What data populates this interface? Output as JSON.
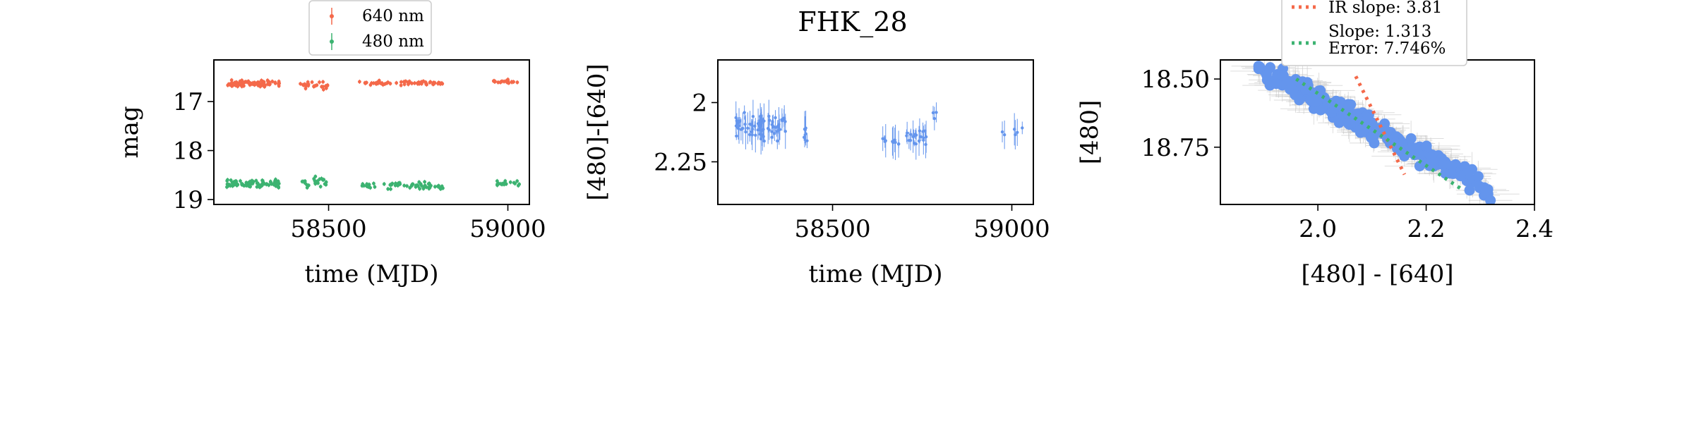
{
  "figure": {
    "title": "FHK_28"
  },
  "colors": {
    "red": "#f4694a",
    "green": "#3cb371",
    "blue": "#6495ed",
    "errgray": "#c8c8c8"
  },
  "chart_data": [
    {
      "type": "scatter",
      "xlabel": "time (MJD)",
      "ylabel": "mag",
      "xlim": [
        58180,
        59060
      ],
      "ylim": [
        19.1,
        16.15
      ],
      "yscale": "inverted",
      "xticks": [
        58500,
        59000
      ],
      "yticks": [
        17,
        18,
        19
      ],
      "legend": {
        "position": "top-center",
        "entries": [
          "640 nm",
          "480 nm"
        ]
      },
      "series": [
        {
          "name": "640 nm",
          "color": "#f4694a",
          "segments": [
            {
              "x_range": [
                58215,
                58365
              ],
              "y_mean": 16.63,
              "y_spread": 0.09,
              "n": 90
            },
            {
              "x_range": [
                58420,
                58500
              ],
              "y_mean": 16.68,
              "y_spread": 0.12,
              "n": 24
            },
            {
              "x_range": [
                58585,
                58820
              ],
              "y_mean": 16.62,
              "y_spread": 0.06,
              "n": 60
            },
            {
              "x_range": [
                58960,
                59035
              ],
              "y_mean": 16.6,
              "y_spread": 0.06,
              "n": 22
            }
          ]
        },
        {
          "name": "480 nm",
          "color": "#3cb371",
          "segments": [
            {
              "x_range": [
                58215,
                58365
              ],
              "y_mean": 18.68,
              "y_spread": 0.12,
              "n": 90
            },
            {
              "x_range": [
                58420,
                58500
              ],
              "y_mean": 18.65,
              "y_spread": 0.14,
              "n": 22
            },
            {
              "x_range": [
                58585,
                58820
              ],
              "y_mean": 18.72,
              "y_spread": 0.1,
              "n": 60
            },
            {
              "x_range": [
                58960,
                59035
              ],
              "y_mean": 18.68,
              "y_spread": 0.08,
              "n": 20
            }
          ]
        }
      ]
    },
    {
      "type": "scatter",
      "xlabel": "time (MJD)",
      "ylabel": "[480]-[640]",
      "xlim": [
        58180,
        59060
      ],
      "ylim": [
        2.43,
        1.82
      ],
      "yscale": "inverted",
      "xticks": [
        58500,
        59000
      ],
      "yticks": [
        2.0,
        2.25
      ],
      "series": [
        {
          "name": "",
          "color": "#6495ed",
          "segments": [
            {
              "x_range": [
                58230,
                58370
              ],
              "y_mean": 2.1,
              "y_spread": 0.08,
              "n": 70
            },
            {
              "x_range": [
                58420,
                58440
              ],
              "y_mean": 2.12,
              "y_spread": 0.06,
              "n": 6
            },
            {
              "x_range": [
                58640,
                58690
              ],
              "y_mean": 2.16,
              "y_spread": 0.05,
              "n": 10
            },
            {
              "x_range": [
                58700,
                58770
              ],
              "y_mean": 2.15,
              "y_spread": 0.06,
              "n": 20
            },
            {
              "x_range": [
                58780,
                58790
              ],
              "y_mean": 2.05,
              "y_spread": 0.03,
              "n": 3
            },
            {
              "x_range": [
                58970,
                59030
              ],
              "y_mean": 2.12,
              "y_spread": 0.03,
              "n": 6
            }
          ]
        }
      ]
    },
    {
      "type": "scatter",
      "xlabel": "[480] - [640]",
      "ylabel": "[480]",
      "xlim": [
        1.82,
        2.4
      ],
      "ylim": [
        18.96,
        18.43
      ],
      "yscale": "inverted",
      "xticks": [
        2.0,
        2.2,
        2.4
      ],
      "yticks": [
        18.5,
        18.75
      ],
      "legend": {
        "position": "top-center",
        "entries": [
          "IR slope: 3.81",
          "Slope: 1.313\nError: 7.746%"
        ]
      },
      "points": {
        "x_range": [
          1.9,
          2.32
        ],
        "y_range": [
          18.48,
          18.88
        ],
        "n": 240,
        "color": "#6495ed"
      },
      "lines": [
        {
          "name": "IR slope: 3.81",
          "color": "#f4694a",
          "style": "dotted",
          "x": [
            2.07,
            2.16
          ],
          "y": [
            18.49,
            18.85
          ]
        },
        {
          "name": "Slope: 1.313\nError: 7.746%",
          "color": "#3cb371",
          "style": "dotted",
          "x": [
            1.96,
            2.27
          ],
          "y": [
            18.5,
            18.91
          ]
        }
      ]
    }
  ]
}
